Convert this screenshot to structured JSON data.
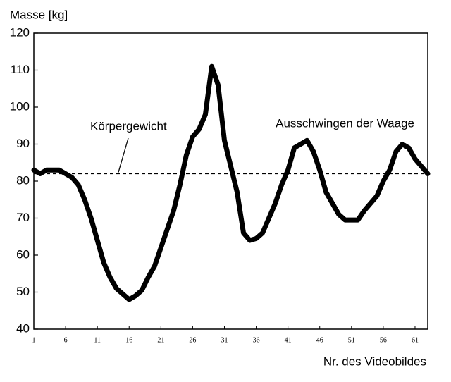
{
  "chart_data": {
    "type": "line",
    "ylabel": "Masse [kg]",
    "xlabel": "Nr. des Videobildes",
    "x": [
      1,
      2,
      3,
      4,
      5,
      6,
      7,
      8,
      9,
      10,
      11,
      12,
      13,
      14,
      15,
      16,
      17,
      18,
      19,
      20,
      21,
      22,
      23,
      24,
      25,
      26,
      27,
      28,
      29,
      30,
      31,
      32,
      33,
      34,
      35,
      36,
      37,
      38,
      39,
      40,
      41,
      42,
      43,
      44,
      45,
      46,
      47,
      48,
      49,
      50,
      51,
      52,
      53,
      54,
      55,
      56,
      57,
      58,
      59,
      60,
      61,
      62,
      63
    ],
    "series": [
      {
        "name": "Masse",
        "color": "#000000",
        "values": [
          83,
          82,
          83,
          83,
          83,
          82,
          81,
          79,
          75,
          70,
          64,
          58,
          54,
          51,
          49.5,
          48,
          49,
          50.5,
          54,
          57,
          62,
          67,
          72,
          79,
          87,
          92,
          94,
          98,
          111,
          106,
          91,
          84,
          77,
          66,
          64,
          64.5,
          66,
          70,
          74,
          79,
          83,
          89,
          90,
          91,
          88,
          83,
          77,
          74,
          71,
          69.5,
          69.5,
          69.5,
          72,
          74,
          76,
          80,
          83,
          88,
          90,
          89,
          86,
          84,
          82
        ]
      }
    ],
    "reference": {
      "value": 82,
      "label": "Körpergewicht"
    },
    "annotations": [
      "Ausschwingen der Waage"
    ],
    "xlim": [
      1,
      63
    ],
    "ylim": [
      40,
      120
    ],
    "xticks": [
      1,
      6,
      11,
      16,
      21,
      26,
      31,
      36,
      41,
      46,
      51,
      56,
      61
    ],
    "yticks": [
      40,
      50,
      60,
      70,
      80,
      90,
      100,
      110,
      120
    ]
  }
}
